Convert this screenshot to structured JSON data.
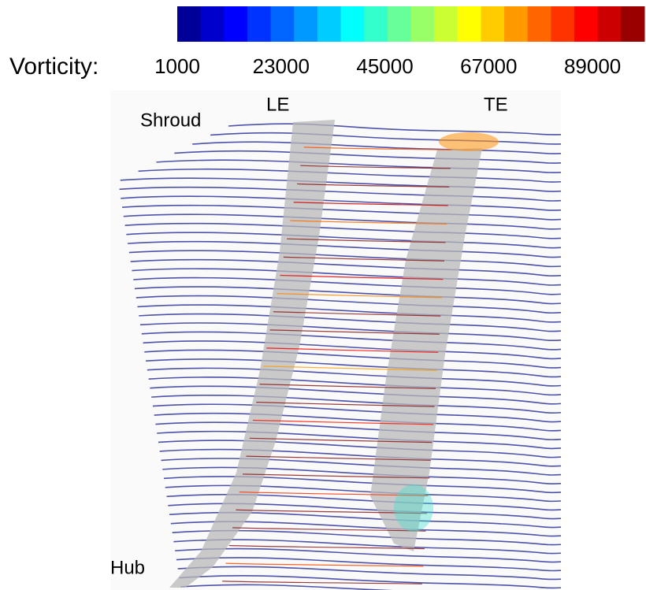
{
  "colorbar": {
    "label": "Vorticity:",
    "range": [
      1000,
      100000
    ],
    "ticks": [
      1000,
      23000,
      45000,
      67000,
      89000
    ],
    "bands": 20,
    "colormap": "jet"
  },
  "annotations": {
    "shroud": "Shroud",
    "hub": "Hub",
    "le": "LE",
    "te": "TE"
  }
}
